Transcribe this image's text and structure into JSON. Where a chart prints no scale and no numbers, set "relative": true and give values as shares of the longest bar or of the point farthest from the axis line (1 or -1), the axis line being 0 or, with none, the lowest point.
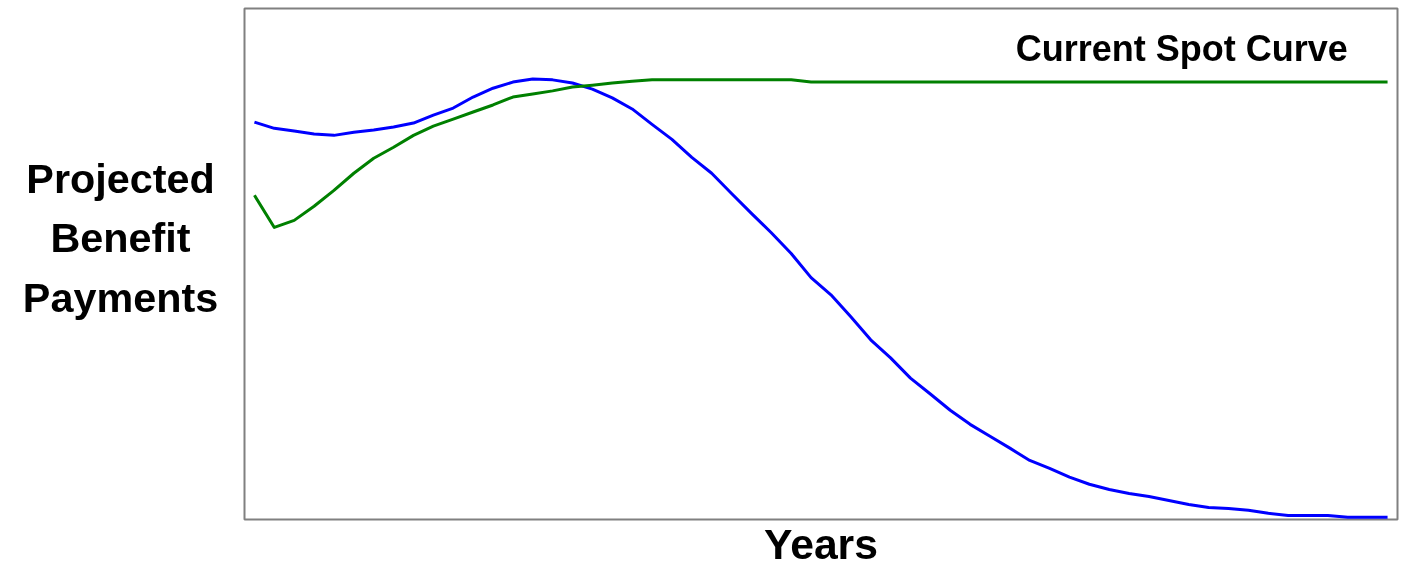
{
  "chart_data": {
    "type": "line",
    "relative": true,
    "xlabel": "Years",
    "ylabel": "Projected Benefit Payments",
    "categories": [
      null,
      null,
      null,
      null,
      null,
      null,
      null,
      null,
      null,
      null,
      null,
      null,
      null,
      null,
      null,
      null,
      null,
      null,
      null,
      null,
      null,
      null,
      null,
      null,
      null,
      null,
      null,
      null,
      null,
      null,
      null,
      null,
      null,
      null,
      null,
      null,
      null,
      null,
      null,
      null,
      null,
      null,
      null,
      null,
      null,
      null,
      null,
      null,
      null,
      null,
      null,
      null,
      null,
      null,
      null,
      null,
      null,
      null
    ],
    "series": [
      {
        "color": "#0000ff",
        "values": [
          0.902,
          0.888,
          0.882,
          0.875,
          0.872,
          0.879,
          0.884,
          0.891,
          0.9,
          0.918,
          0.934,
          0.959,
          0.979,
          0.993,
          1.0,
          0.998,
          0.991,
          0.977,
          0.957,
          0.932,
          0.897,
          0.863,
          0.822,
          0.786,
          0.74,
          0.695,
          0.651,
          0.604,
          0.549,
          0.51,
          0.46,
          0.408,
          0.367,
          0.321,
          0.285,
          0.248,
          0.216,
          0.189,
          0.162,
          0.134,
          0.116,
          0.096,
          0.08,
          0.068,
          0.059,
          0.052,
          0.043,
          0.034,
          0.027,
          0.025,
          0.021,
          0.014,
          0.009,
          0.009,
          0.009,
          0.005,
          0.005,
          0.005
        ]
      },
      {
        "name": "Current Spot Curve",
        "color": "#008000",
        "values": [
          0.736,
          0.663,
          0.679,
          0.711,
          0.747,
          0.786,
          0.82,
          0.845,
          0.872,
          0.893,
          0.909,
          0.925,
          0.941,
          0.959,
          0.966,
          0.973,
          0.982,
          0.986,
          0.991,
          0.995,
          0.998,
          0.998,
          0.998,
          0.998,
          0.998,
          0.998,
          0.998,
          0.998,
          0.993,
          0.993,
          0.993,
          0.993,
          0.993,
          0.993,
          0.993,
          0.993,
          0.993,
          0.993,
          0.993,
          0.993,
          0.993,
          0.993,
          0.993,
          0.993,
          0.993,
          0.993,
          0.993,
          0.993,
          0.993,
          0.993,
          0.993,
          0.993,
          0.993,
          0.993,
          0.993,
          0.993,
          0.993,
          0.993
        ]
      }
    ],
    "legend": false,
    "marker": "none",
    "line_style": "solid"
  }
}
